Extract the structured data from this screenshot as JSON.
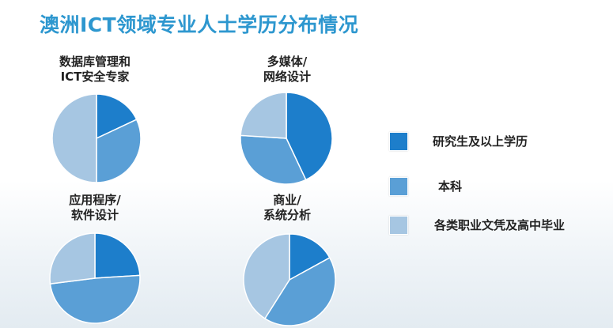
{
  "title": "澳洲ICT领域专业人士学历分布情况",
  "legend": [
    {
      "label": "研究生及以上学历",
      "color": "#1d7ecb"
    },
    {
      "label": "本科",
      "color": "#5a9fd6"
    },
    {
      "label": "各类职业文凭及高中毕业",
      "color": "#a6c6e2"
    }
  ],
  "chart_data": [
    {
      "type": "pie",
      "title": [
        "数据库管理和",
        "ICT安全专家"
      ],
      "categories": [
        "研究生及以上学历",
        "本科",
        "各类职业文凭及高中毕业"
      ],
      "values": [
        18,
        32,
        50
      ]
    },
    {
      "type": "pie",
      "title": [
        "多媒体/",
        "网络设计"
      ],
      "categories": [
        "研究生及以上学历",
        "本科",
        "各类职业文凭及高中毕业"
      ],
      "values": [
        43,
        33,
        24
      ]
    },
    {
      "type": "pie",
      "title": [
        "应用程序/",
        "软件设计"
      ],
      "categories": [
        "研究生及以上学历",
        "本科",
        "各类职业文凭及高中毕业"
      ],
      "values": [
        24,
        49,
        27
      ]
    },
    {
      "type": "pie",
      "title": [
        "商业/",
        "系统分析"
      ],
      "categories": [
        "研究生及以上学历",
        "本科",
        "各类职业文凭及高中毕业"
      ],
      "values": [
        17,
        42,
        41
      ]
    }
  ]
}
